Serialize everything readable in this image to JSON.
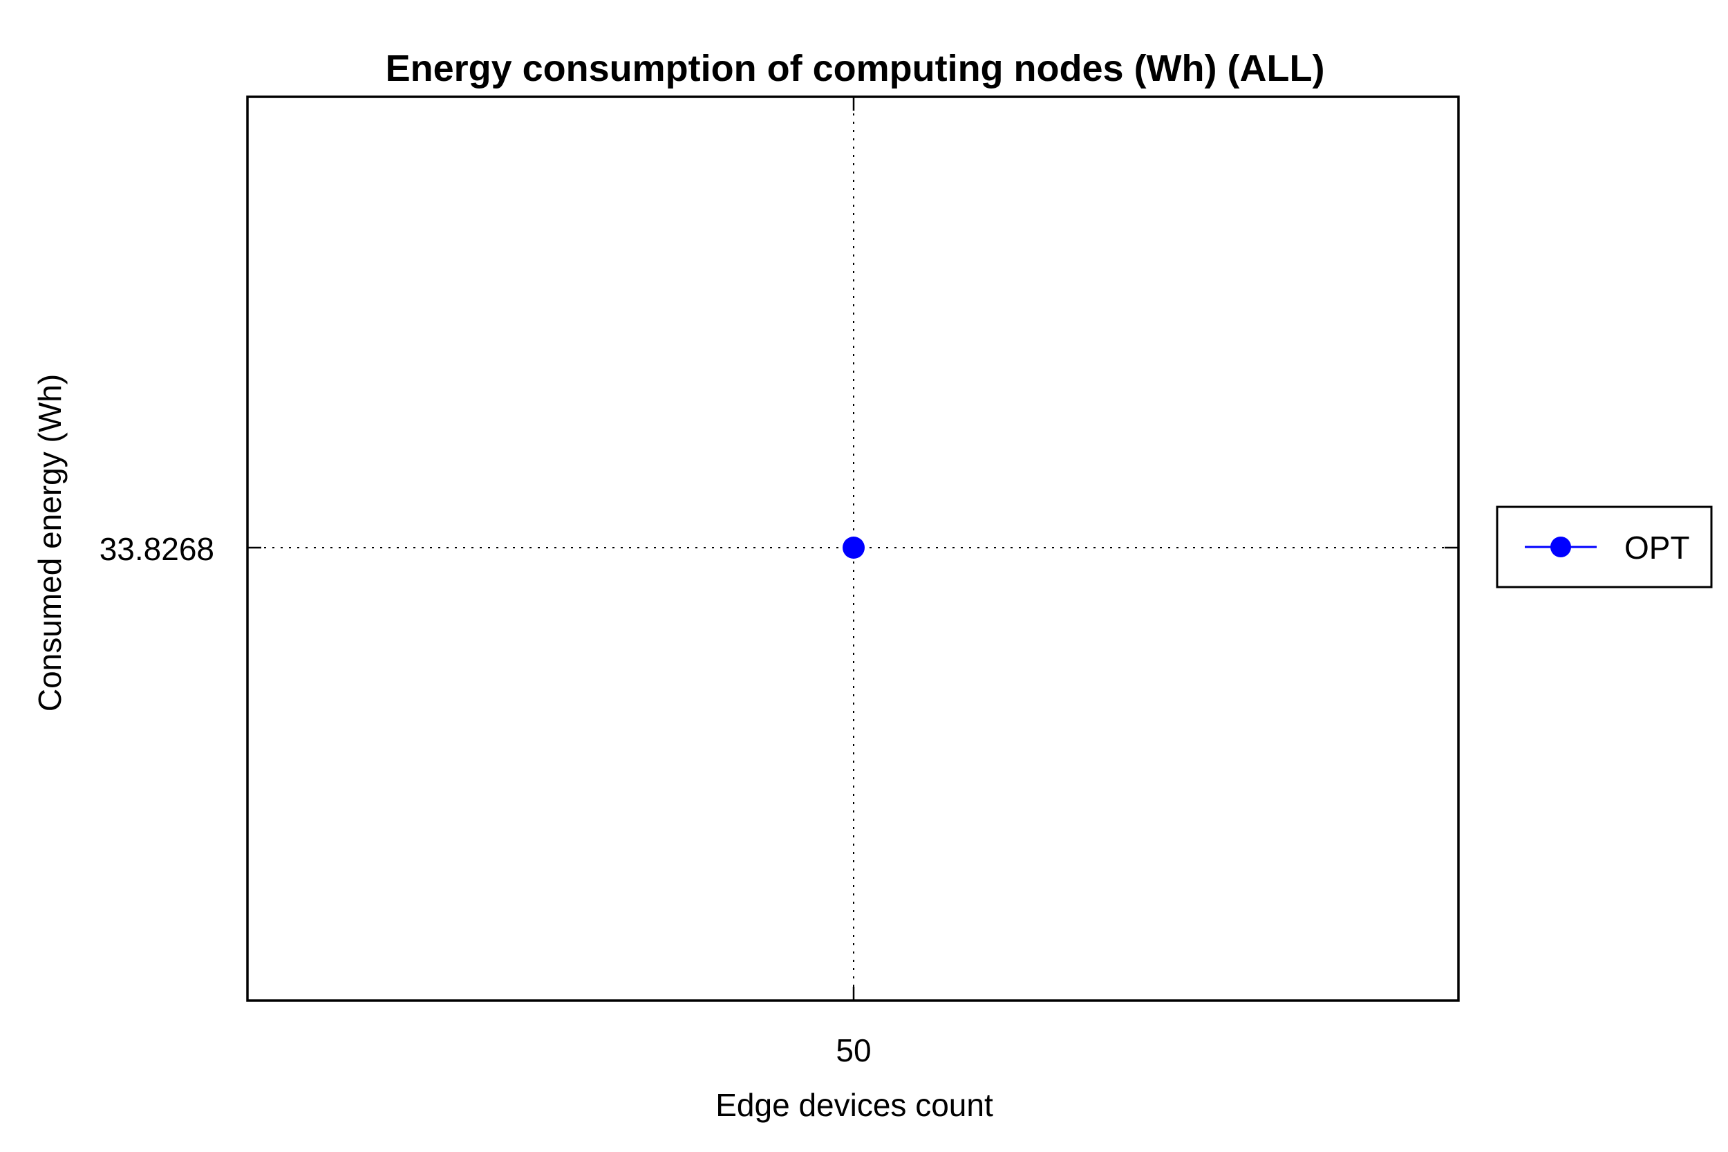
{
  "chart_data": {
    "type": "line",
    "title": "Energy consumption of computing nodes (Wh) (ALL)",
    "xlabel": "Edge devices count",
    "ylabel": "Consumed energy (Wh)",
    "x_ticks": [
      "50"
    ],
    "y_ticks": [
      "33.8268"
    ],
    "grid": true,
    "legend_position": "right",
    "series": [
      {
        "name": "OPT",
        "color": "#0000ff",
        "marker": "circle",
        "points": [
          {
            "x": 50,
            "y": 33.8268
          }
        ]
      }
    ]
  }
}
